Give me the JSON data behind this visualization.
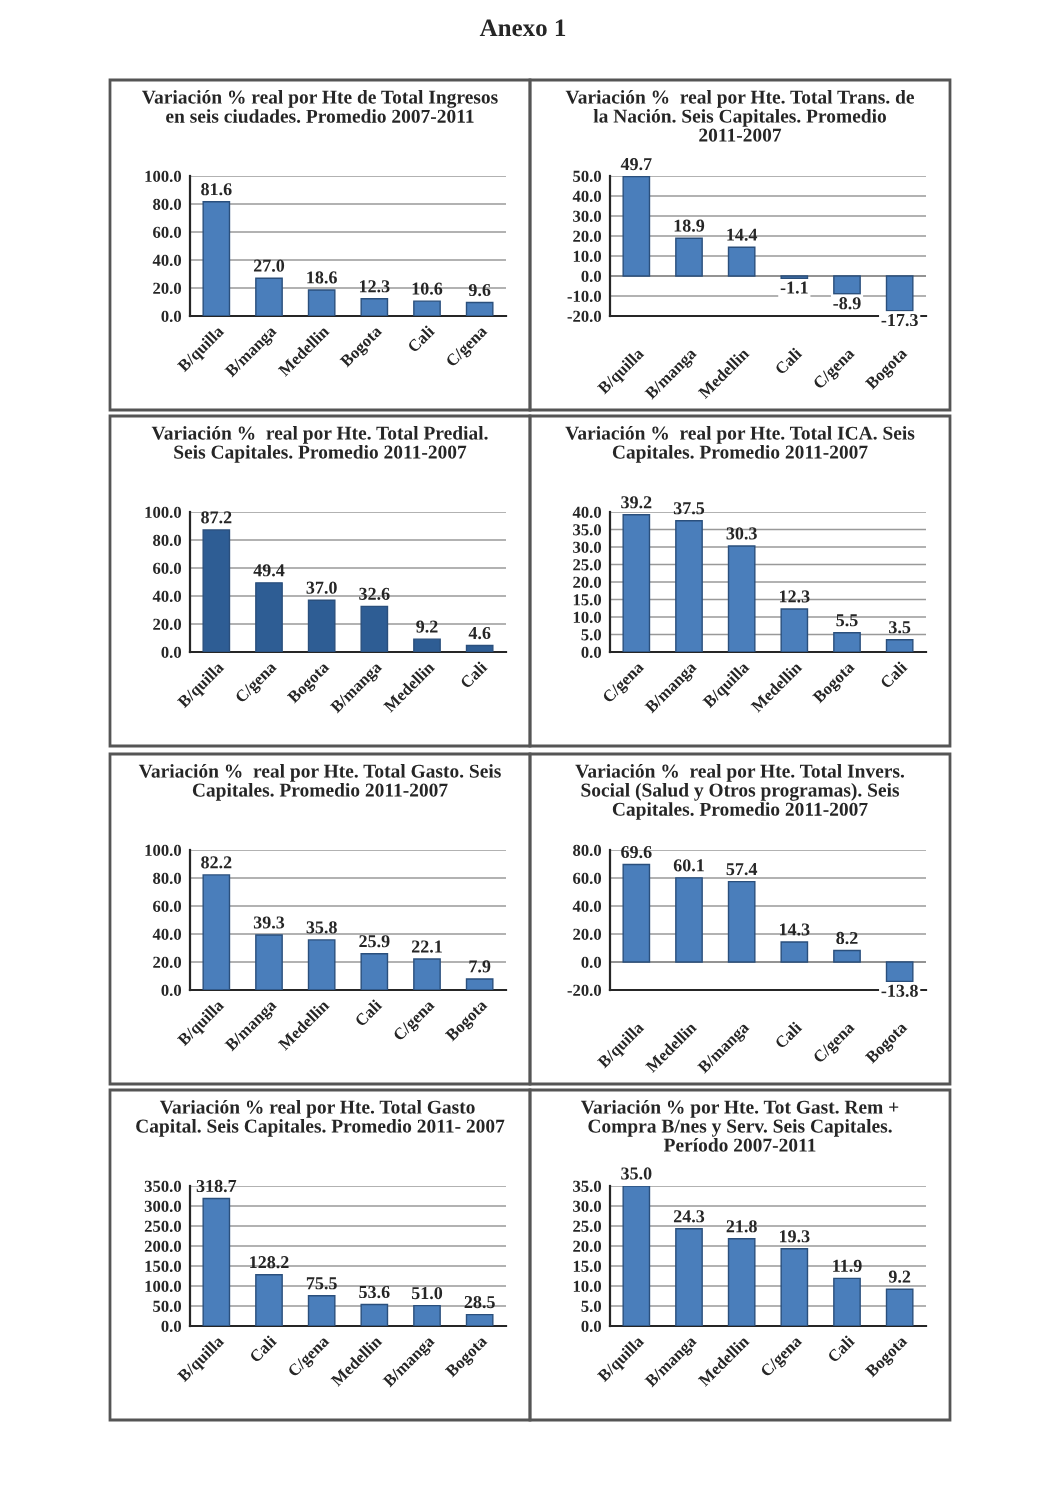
{
  "chart_data": [
    {
      "type": "bar",
      "title": "Variación % real por Hte de Total Ingresos en seis ciudades. Promedio 2007-2011",
      "annotations": [
        "Anexo 1"
      ],
      "categories": [
        "B/quilla",
        "B/manga",
        "Medellin",
        "Bogota",
        "Cali",
        "C/gena"
      ],
      "values": [
        81.6,
        27.0,
        18.6,
        12.3,
        10.6,
        9.6
      ],
      "value_labels": [
        "81.6",
        "27.0",
        "18.6",
        "12.3",
        "10.6",
        "9.6"
      ],
      "color": "#4a7ebb",
      "ylim": [
        0,
        100
      ],
      "yticks": [
        {
          "value": 0,
          "label": "0.0"
        },
        {
          "value": 20,
          "label": "20.0"
        },
        {
          "value": 40,
          "label": "40.0"
        },
        {
          "value": 60,
          "label": "60.0"
        },
        {
          "value": 80,
          "label": "80.0"
        },
        {
          "value": 100,
          "label": "100.0"
        }
      ],
      "grid": "y"
    },
    {
      "type": "bar",
      "title": "Variación %  real por Hte. Total Trans. de la Nación. Seis Capitales. Promedio 2011-2007",
      "categories": [
        "B/quilla",
        "B/manga",
        "Medellin",
        "Cali",
        "C/gena",
        "Bogota"
      ],
      "values": [
        49.7,
        18.9,
        14.4,
        -1.1,
        -8.9,
        -17.3
      ],
      "value_labels": [
        "49.7",
        "18.9",
        "14.4",
        "-1.1",
        "-8.9",
        "-17.3"
      ],
      "color": "#4a7ebb",
      "ylim": [
        -20,
        50
      ],
      "yticks": [
        {
          "value": -20,
          "label": "-20.0"
        },
        {
          "value": -10,
          "label": "-10.0"
        },
        {
          "value": 0,
          "label": "0.0"
        },
        {
          "value": 10,
          "label": "10.0"
        },
        {
          "value": 20,
          "label": "20.0"
        },
        {
          "value": 30,
          "label": "30.0"
        },
        {
          "value": 40,
          "label": "40.0"
        },
        {
          "value": 50,
          "label": "50.0"
        }
      ],
      "grid": "y"
    },
    {
      "type": "bar",
      "title": "Variación %  real por Hte. Total Predial. Seis Capitales. Promedio 2011-2007",
      "categories": [
        "B/quilla",
        "C/gena",
        "Bogota",
        "B/manga",
        "Medellin",
        "Cali"
      ],
      "values": [
        87.2,
        49.4,
        37.0,
        32.6,
        9.2,
        4.6
      ],
      "value_labels": [
        "87.2",
        "49.4",
        "37.0",
        "32.6",
        "9.2",
        "4.6"
      ],
      "color": "#2e5d94",
      "ylim": [
        0,
        100
      ],
      "yticks": [
        {
          "value": 0,
          "label": "0.0"
        },
        {
          "value": 20,
          "label": "20.0"
        },
        {
          "value": 40,
          "label": "40.0"
        },
        {
          "value": 60,
          "label": "60.0"
        },
        {
          "value": 80,
          "label": "80.0"
        },
        {
          "value": 100,
          "label": "100.0"
        }
      ],
      "grid": "y"
    },
    {
      "type": "bar",
      "title": "Variación %  real por Hte. Total ICA. Seis Capitales. Promedio 2011-2007",
      "categories": [
        "C/gena",
        "B/manga",
        "B/quilla",
        "Medellin",
        "Bogota",
        "Cali"
      ],
      "values": [
        39.2,
        37.5,
        30.3,
        12.3,
        5.5,
        3.5
      ],
      "value_labels": [
        "39.2",
        "37.5",
        "30.3",
        "12.3",
        "5.5",
        "3.5"
      ],
      "color": "#4a7ebb",
      "ylim": [
        0,
        40
      ],
      "yticks": [
        {
          "value": 0,
          "label": "0.0"
        },
        {
          "value": 5,
          "label": "5.0"
        },
        {
          "value": 10,
          "label": "10.0"
        },
        {
          "value": 15,
          "label": "15.0"
        },
        {
          "value": 20,
          "label": "20.0"
        },
        {
          "value": 25,
          "label": "25.0"
        },
        {
          "value": 30,
          "label": "30.0"
        },
        {
          "value": 35,
          "label": "35.0"
        },
        {
          "value": 40,
          "label": "40.0"
        }
      ],
      "grid": "y"
    },
    {
      "type": "bar",
      "title": "Variación %  real por Hte. Total Gasto. Seis Capitales. Promedio 2011-2007",
      "categories": [
        "B/quilla",
        "B/manga",
        "Medellin",
        "Cali",
        "C/gena",
        "Bogota"
      ],
      "values": [
        82.2,
        39.3,
        35.8,
        25.9,
        22.1,
        7.9
      ],
      "value_labels": [
        "82.2",
        "39.3",
        "35.8",
        "25.9",
        "22.1",
        "7.9"
      ],
      "color": "#4a7ebb",
      "ylim": [
        0,
        100
      ],
      "yticks": [
        {
          "value": 0,
          "label": "0.0"
        },
        {
          "value": 20,
          "label": "20.0"
        },
        {
          "value": 40,
          "label": "40.0"
        },
        {
          "value": 60,
          "label": "60.0"
        },
        {
          "value": 80,
          "label": "80.0"
        },
        {
          "value": 100,
          "label": "100.0"
        }
      ],
      "grid": "y"
    },
    {
      "type": "bar",
      "title": "Variación %  real por Hte. Total Invers. Social (Salud y Otros programas). Seis Capitales. Promedio 2011-2007",
      "categories": [
        "B/quilla",
        "Medellin",
        "B/manga",
        "Cali",
        "C/gena",
        "Bogota"
      ],
      "values": [
        69.6,
        60.1,
        57.4,
        14.3,
        8.2,
        -13.8
      ],
      "value_labels": [
        "69.6",
        "60.1",
        "57.4",
        "14.3",
        "8.2",
        "-13.8"
      ],
      "color": "#4a7ebb",
      "ylim": [
        -20,
        80
      ],
      "yticks": [
        {
          "value": -20,
          "label": "-20.0"
        },
        {
          "value": 0,
          "label": "0.0"
        },
        {
          "value": 20,
          "label": "20.0"
        },
        {
          "value": 40,
          "label": "40.0"
        },
        {
          "value": 60,
          "label": "60.0"
        },
        {
          "value": 80,
          "label": "80.0"
        }
      ],
      "grid": "y"
    },
    {
      "type": "bar",
      "title": "Variación % real por Hte. Total Gasto  Capital. Seis Capitales. Promedio 2011- 2007",
      "categories": [
        "B/quilla",
        "Cali",
        "C/gena",
        "Medellin",
        "B/manga",
        "Bogota"
      ],
      "values": [
        318.7,
        128.2,
        75.5,
        53.6,
        51.0,
        28.5
      ],
      "value_labels": [
        "318.7",
        "128.2",
        "75.5",
        "53.6",
        "51.0",
        "28.5"
      ],
      "color": "#4a7ebb",
      "ylim": [
        0,
        350
      ],
      "yticks": [
        {
          "value": 0,
          "label": "0.0"
        },
        {
          "value": 50,
          "label": "50.0"
        },
        {
          "value": 100,
          "label": "100.0"
        },
        {
          "value": 150,
          "label": "150.0"
        },
        {
          "value": 200,
          "label": "200.0"
        },
        {
          "value": 250,
          "label": "250.0"
        },
        {
          "value": 300,
          "label": "300.0"
        },
        {
          "value": 350,
          "label": "350.0"
        }
      ],
      "grid": "y"
    },
    {
      "type": "bar",
      "title": "Variación % por Hte. Tot Gast. Rem + Compra B/nes y Serv. Seis Capitales. Período 2007-2011",
      "categories": [
        "B/quilla",
        "B/manga",
        "Medellin",
        "C/gena",
        "Cali",
        "Bogota"
      ],
      "values": [
        35.0,
        24.3,
        21.8,
        19.3,
        11.9,
        9.2
      ],
      "value_labels": [
        "35.0",
        "24.3",
        "21.8",
        "19.3",
        "11.9",
        "9.2"
      ],
      "color": "#4a7ebb",
      "ylim": [
        0,
        35
      ],
      "yticks": [
        {
          "value": 0,
          "label": "0.0"
        },
        {
          "value": 5,
          "label": "5.0"
        },
        {
          "value": 10,
          "label": "10.0"
        },
        {
          "value": 15,
          "label": "15.0"
        },
        {
          "value": 20,
          "label": "20.0"
        },
        {
          "value": 25,
          "label": "25.0"
        },
        {
          "value": 30,
          "label": "30.0"
        },
        {
          "value": 35,
          "label": "35.0"
        }
      ],
      "grid": "y"
    }
  ]
}
